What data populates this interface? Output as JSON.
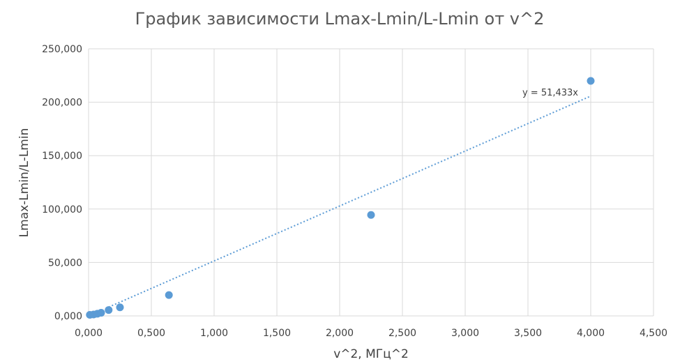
{
  "chart_data": {
    "type": "scatter",
    "title": "График зависимости Lmax-Lmin/L-Lmin от v^2",
    "xlabel": "v^2, МГц^2",
    "ylabel": "Lmax-Lmin/L-Lmin",
    "xlim": [
      0,
      4.5
    ],
    "ylim": [
      0,
      250
    ],
    "x_ticks": [
      "0,000",
      "0,500",
      "1,000",
      "1,500",
      "2,000",
      "2,500",
      "3,000",
      "3,500",
      "4,000",
      "4,500"
    ],
    "y_ticks": [
      "0,000",
      "50,000",
      "100,000",
      "150,000",
      "200,000",
      "250,000"
    ],
    "grid": true,
    "legend": "none",
    "series": [
      {
        "points": [
          {
            "x": 0.01,
            "y": 1.0
          },
          {
            "x": 0.04,
            "y": 1.3
          },
          {
            "x": 0.07,
            "y": 2.0
          },
          {
            "x": 0.1,
            "y": 2.9
          },
          {
            "x": 0.16,
            "y": 5.5
          },
          {
            "x": 0.25,
            "y": 8.0
          },
          {
            "x": 0.64,
            "y": 19.5
          },
          {
            "x": 2.25,
            "y": 94.5
          },
          {
            "x": 4.0,
            "y": 220.0
          }
        ],
        "color": "#5b9bd5"
      }
    ],
    "trendline": {
      "type": "linear",
      "slope": 51.433,
      "x_range": [
        0.16,
        4.0
      ],
      "equation_label": "y = 51,433x"
    }
  }
}
